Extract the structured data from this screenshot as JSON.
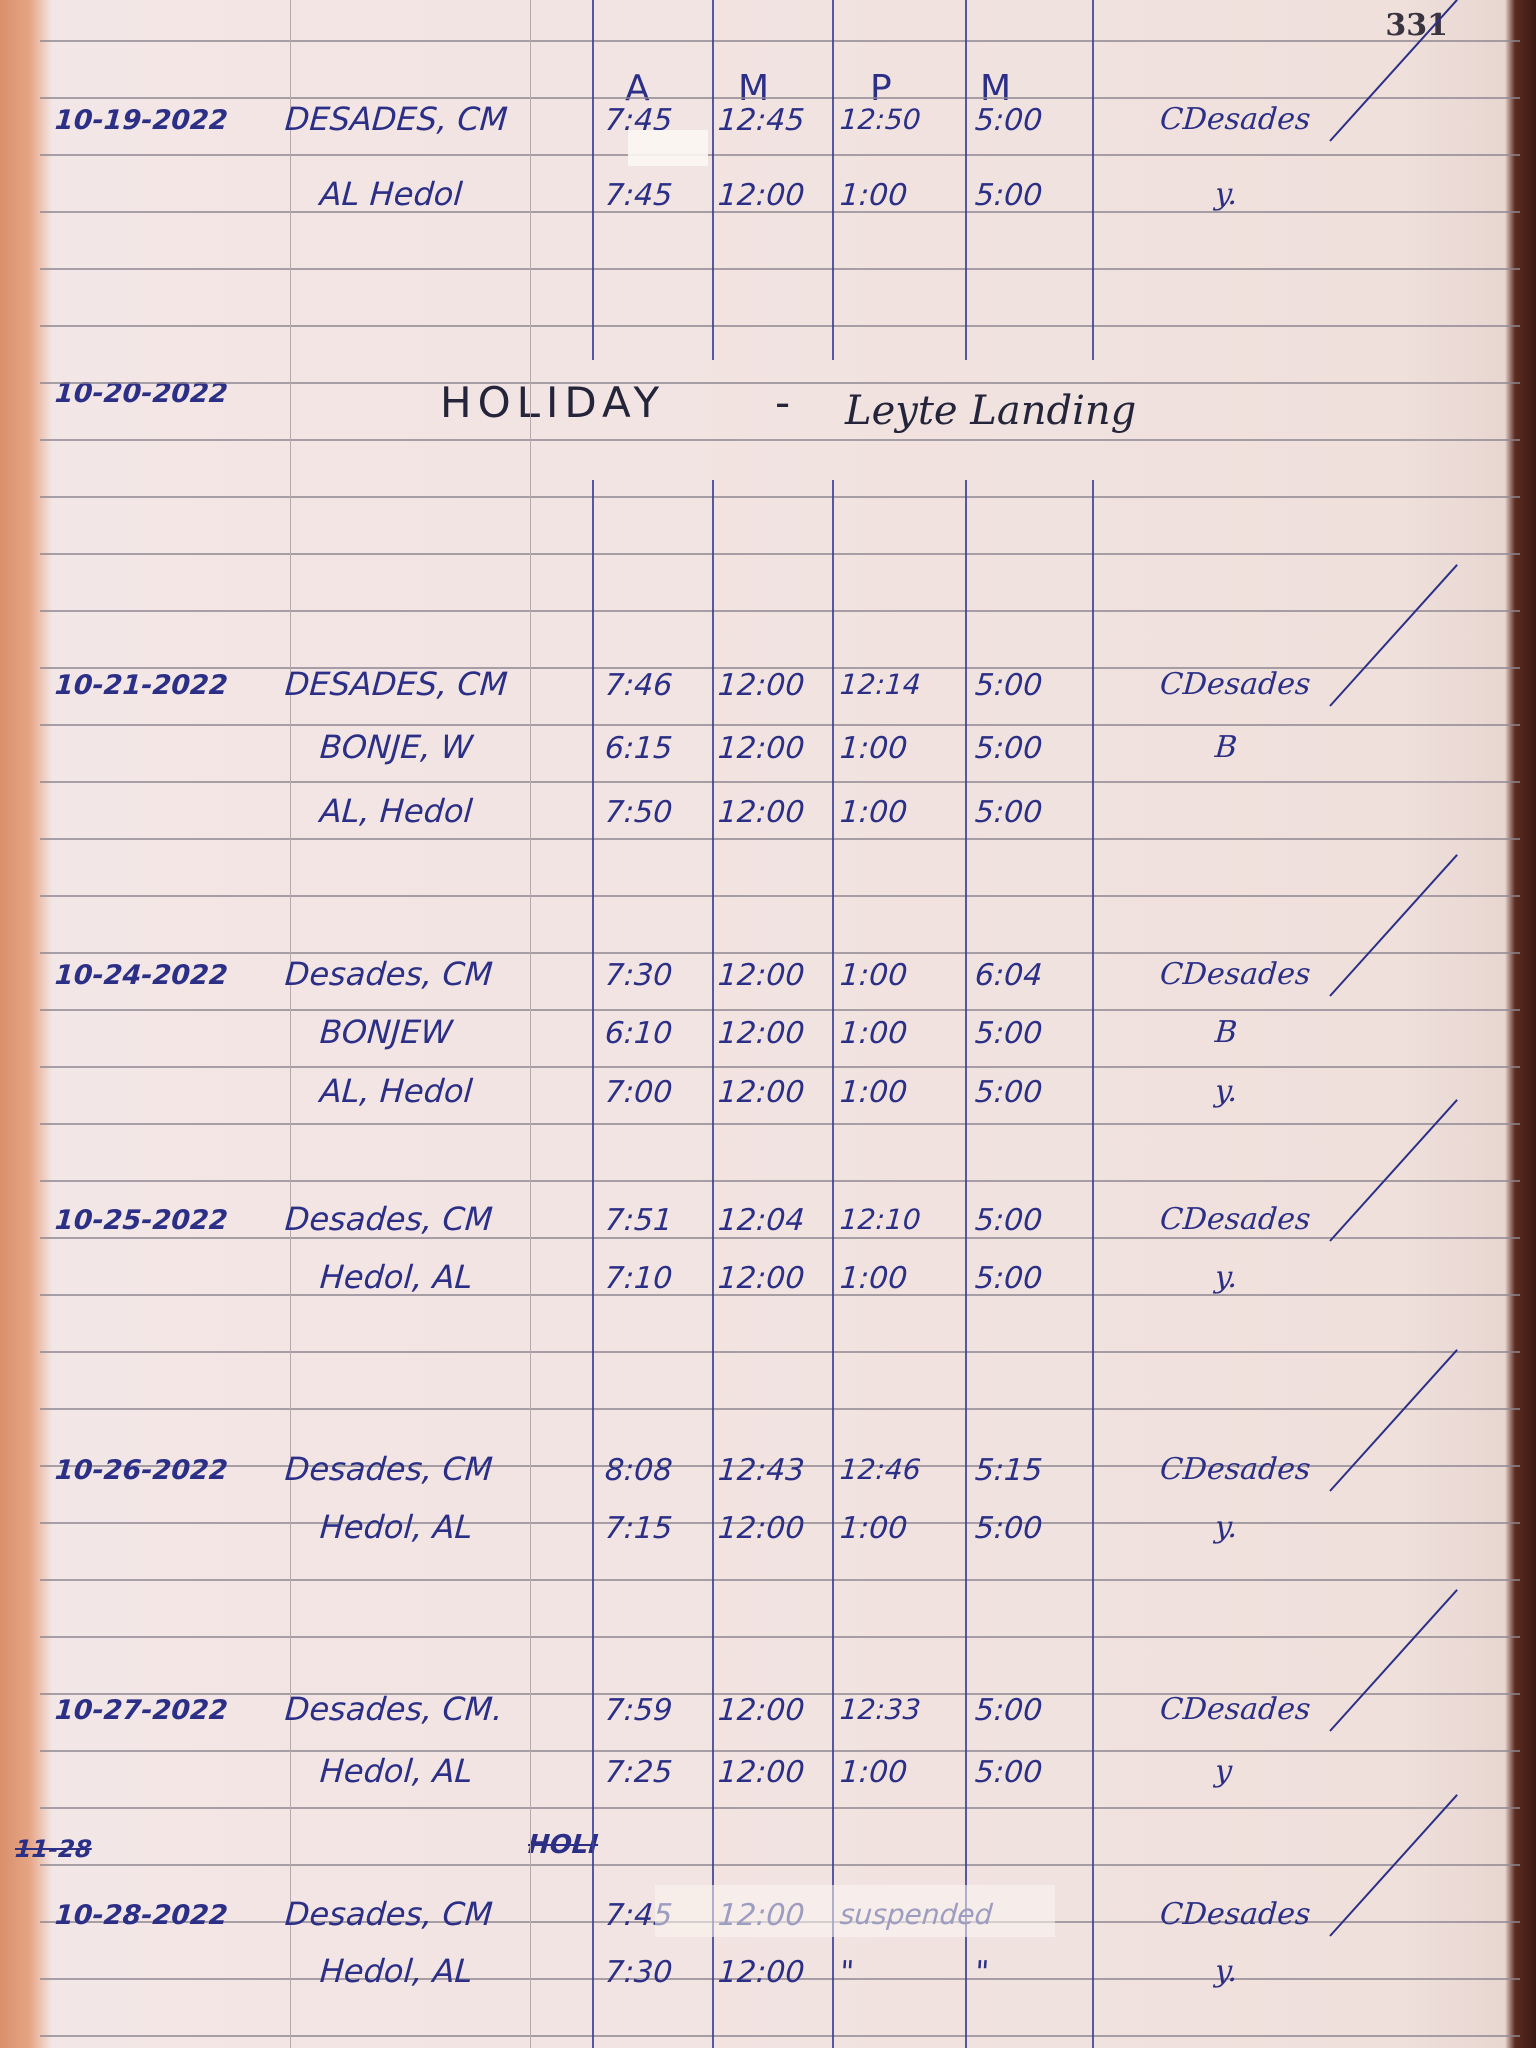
{
  "page_number": "331",
  "column_headers": [
    "A",
    "M",
    "P",
    "M"
  ],
  "holiday": {
    "date": "10-20-2022",
    "label": "HOLIDAY",
    "dash": "-",
    "occasion": "Leyte Landing"
  },
  "entries": [
    {
      "date": "10-19-2022",
      "rows": [
        {
          "name": "DESADES, CM",
          "am_in": "7:45",
          "am_out": "12:45",
          "pm_in": "12:50",
          "pm_out": "5:00",
          "signature": "CDesades"
        },
        {
          "name": "AL Hedol",
          "am_in": "7:45",
          "am_out": "12:00",
          "pm_in": "1:00",
          "pm_out": "5:00",
          "signature": "y."
        }
      ]
    },
    {
      "date": "10-21-2022",
      "rows": [
        {
          "name": "DESADES, CM",
          "am_in": "7:46",
          "am_out": "12:00",
          "pm_in": "12:14",
          "pm_out": "5:00",
          "signature": "CDesades"
        },
        {
          "name": "BONJE, W",
          "am_in": "6:15",
          "am_out": "12:00",
          "pm_in": "1:00",
          "pm_out": "5:00",
          "signature": "B"
        },
        {
          "name": "AL, Hedol",
          "am_in": "7:50",
          "am_out": "12:00",
          "pm_in": "1:00",
          "pm_out": "5:00",
          "signature": ""
        }
      ]
    },
    {
      "date": "10-24-2022",
      "rows": [
        {
          "name": "Desades, CM",
          "am_in": "7:30",
          "am_out": "12:00",
          "pm_in": "1:00",
          "pm_out": "6:04",
          "signature": "CDesades"
        },
        {
          "name": "BONJEW",
          "am_in": "6:10",
          "am_out": "12:00",
          "pm_in": "1:00",
          "pm_out": "5:00",
          "signature": "B"
        },
        {
          "name": "AL, Hedol",
          "am_in": "7:00",
          "am_out": "12:00",
          "pm_in": "1:00",
          "pm_out": "5:00",
          "signature": "y."
        }
      ]
    },
    {
      "date": "10-25-2022",
      "rows": [
        {
          "name": "Desades, CM",
          "am_in": "7:51",
          "am_out": "12:04",
          "pm_in": "12:10",
          "pm_out": "5:00",
          "signature": "CDesades"
        },
        {
          "name": "Hedol, AL",
          "am_in": "7:10",
          "am_out": "12:00",
          "pm_in": "1:00",
          "pm_out": "5:00",
          "signature": "y."
        }
      ]
    },
    {
      "date": "10-26-2022",
      "rows": [
        {
          "name": "Desades, CM",
          "am_in": "8:08",
          "am_out": "12:43",
          "pm_in": "12:46",
          "pm_out": "5:15",
          "signature": "CDesades"
        },
        {
          "name": "Hedol, AL",
          "am_in": "7:15",
          "am_out": "12:00",
          "pm_in": "1:00",
          "pm_out": "5:00",
          "signature": "y."
        }
      ]
    },
    {
      "date": "10-27-2022",
      "rows": [
        {
          "name": "Desades, CM.",
          "am_in": "7:59",
          "am_out": "12:00",
          "pm_in": "12:33",
          "pm_out": "5:00",
          "signature": "CDesades"
        },
        {
          "name": "Hedol, AL",
          "am_in": "7:25",
          "am_out": "12:00",
          "pm_in": "1:00",
          "pm_out": "5:00",
          "signature": "y"
        }
      ]
    },
    {
      "date": "10-28-2022",
      "rows": [
        {
          "name": "Desades, CM",
          "am_in": "7:45",
          "am_out": "12:00",
          "pm_in": "suspended",
          "pm_out": "",
          "signature": "CDesades"
        },
        {
          "name": "Hedol, AL",
          "am_in": "7:30",
          "am_out": "12:00",
          "pm_in": "\"",
          "pm_out": "\"",
          "signature": "y."
        }
      ]
    }
  ],
  "crossed_out": {
    "date": "11-28",
    "word": "HOLI"
  }
}
